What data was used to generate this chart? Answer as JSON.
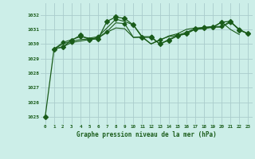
{
  "background_color": "#cceee8",
  "grid_color": "#aacccc",
  "line_color": "#1a5c1a",
  "title": "Graphe pression niveau de la mer (hPa)",
  "ylabel_vals": [
    1025,
    1026,
    1027,
    1028,
    1029,
    1030,
    1031,
    1032
  ],
  "xlim": [
    -0.5,
    23.5
  ],
  "ylim": [
    1024.5,
    1032.8
  ],
  "series": [
    {
      "y": [
        1025.0,
        1029.65,
        1029.8,
        1030.25,
        1030.6,
        1030.3,
        1030.35,
        1031.55,
        1031.85,
        1031.75,
        1031.3,
        1030.45,
        1030.45,
        1030.0,
        1030.25,
        1030.55,
        1030.7,
        1031.05,
        1031.1,
        1031.15,
        1031.5,
        1031.55,
        1030.95,
        1030.7
      ],
      "marker": "D",
      "markersize": 3,
      "linewidth": 0.9,
      "marker_indices": [
        0,
        1,
        2,
        3,
        4,
        5,
        6,
        7,
        8,
        9,
        10,
        11,
        12,
        13,
        14,
        15,
        16,
        17,
        18,
        19,
        20,
        21,
        22,
        23
      ]
    },
    {
      "y": [
        1029.65,
        1029.8,
        1030.1,
        1030.2,
        1030.3,
        1030.45,
        1030.85,
        1031.45,
        1031.4,
        1030.45,
        1030.45,
        1030.0,
        1030.3,
        1030.5,
        1030.6,
        1030.7,
        1031.0,
        1031.05,
        1031.15,
        1031.15,
        1031.5,
        1031.0,
        1030.7
      ],
      "x_start": 1,
      "marker": "D",
      "markersize": 2.5,
      "linewidth": 0.8,
      "marker_indices": [
        1,
        3,
        5,
        7,
        9,
        11,
        13,
        15,
        17,
        19,
        21,
        23
      ]
    },
    {
      "y": [
        1029.65,
        1030.1,
        1030.3,
        1030.5,
        1030.4,
        1030.5,
        1031.1,
        1031.7,
        1031.55,
        1031.3,
        1030.5,
        1030.5,
        1030.0,
        1030.3,
        1030.6,
        1030.8,
        1031.05,
        1031.15,
        1031.2,
        1031.2,
        1031.55,
        1031.0,
        1030.7
      ],
      "x_start": 1,
      "marker": "D",
      "markersize": 2.5,
      "linewidth": 0.8,
      "marker_indices": [
        2,
        4,
        6,
        8,
        10,
        12,
        14,
        16,
        18,
        20,
        22
      ]
    },
    {
      "y": [
        1029.65,
        1030.0,
        1030.2,
        1030.3,
        1030.35,
        1030.4,
        1030.8,
        1031.1,
        1031.05,
        1030.45,
        1030.5,
        1030.0,
        1030.25,
        1030.55,
        1030.7,
        1031.0,
        1031.1,
        1031.1,
        1031.15,
        1031.5,
        1031.0,
        1030.65
      ],
      "x_start": 1,
      "marker": null,
      "linewidth": 0.8,
      "marker_indices": []
    }
  ],
  "x_labels": [
    "0",
    "1",
    "2",
    "3",
    "4",
    "5",
    "6",
    "7",
    "8",
    "9",
    "10",
    "11",
    "12",
    "13",
    "14",
    "15",
    "16",
    "17",
    "18",
    "19",
    "20",
    "21",
    "22",
    "23"
  ]
}
